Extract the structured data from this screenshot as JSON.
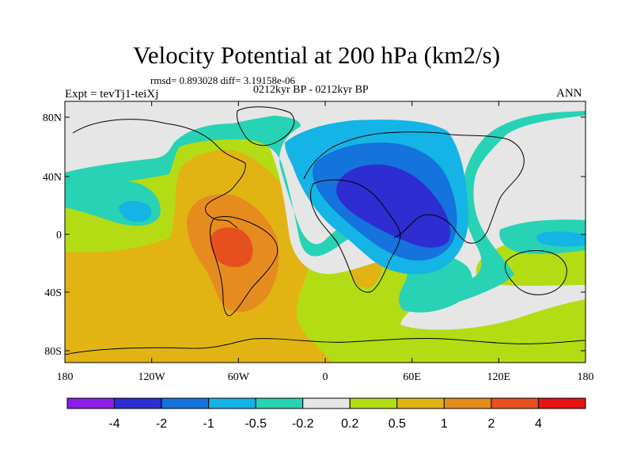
{
  "title": "Velocity Potential at 200 hPa (km2/s)",
  "stats": "rmsd= 0.893028 diff= 3.19158e-06",
  "experiment": "Expt = tevTj1-teiXj",
  "period": "0212kyr BP - 0212kyr BP",
  "season": "ANN",
  "lat_ticks": [
    "80N",
    "40N",
    "0",
    "40S",
    "80S"
  ],
  "lon_ticks": [
    "180",
    "120W",
    "60W",
    "0",
    "60E",
    "120E",
    "180"
  ],
  "colorbar": {
    "labels": [
      "-4",
      "-2",
      "-1",
      "-0.5",
      "-0.2",
      "0.2",
      "0.5",
      "1",
      "2",
      "4"
    ],
    "colors": [
      "#8c1ee6",
      "#2d2dd2",
      "#1473dc",
      "#14b4e6",
      "#28d2b4",
      "#e6e6e6",
      "#b4dc14",
      "#e1b414",
      "#e68c1e",
      "#e6501e",
      "#e61414"
    ]
  },
  "map_colors": {
    "background": "#b4dc14",
    "contour_0_5_to_1": "#e1b414",
    "contour_1_to_2": "#e68c1e",
    "contour_2_to_4": "#e6501e",
    "neutral": "#e6e6e6",
    "contour_m0_5_to_m0_2": "#28d2b4",
    "contour_m1_to_m0_5": "#14b4e6",
    "contour_m2_to_m1": "#1473dc",
    "contour_m4_to_m2": "#2d2dd2"
  }
}
